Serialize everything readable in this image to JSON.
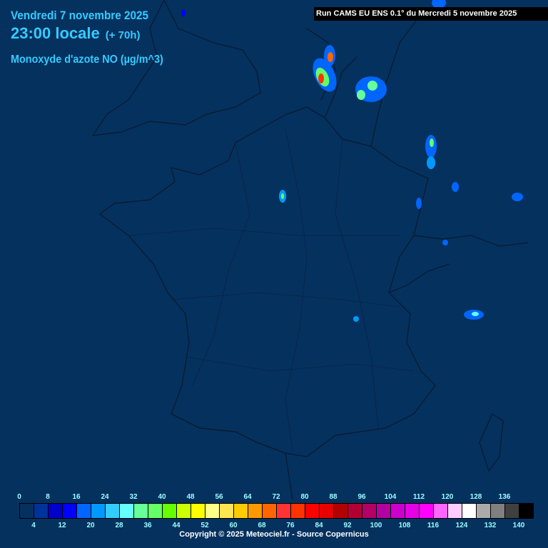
{
  "header": {
    "date": "Vendredi 7 novembre 2025",
    "time": "23:00 locale",
    "lead": "(+ 70h)",
    "parameter": "Monoxyde d'azote NO (µg/m^3)",
    "run": "Run CAMS EU ENS 0.1° du Mercredi 5 novembre 2025"
  },
  "legend": {
    "top_labels": [
      "0",
      "8",
      "16",
      "24",
      "32",
      "40",
      "48",
      "56",
      "64",
      "72",
      "80",
      "88",
      "96",
      "104",
      "112",
      "120",
      "128",
      "136"
    ],
    "bottom_labels": [
      "4",
      "12",
      "20",
      "28",
      "36",
      "44",
      "52",
      "60",
      "68",
      "76",
      "84",
      "92",
      "100",
      "108",
      "116",
      "124",
      "132",
      "140"
    ],
    "colors": [
      "#05315f",
      "#003399",
      "#0000cc",
      "#0000ff",
      "#0066ff",
      "#0099ff",
      "#33ccff",
      "#66ffff",
      "#66ff99",
      "#66ff66",
      "#66ff00",
      "#ccff00",
      "#ffff00",
      "#ffff88",
      "#ffe650",
      "#ffcc00",
      "#ff9900",
      "#ff6600",
      "#ff3333",
      "#ff3300",
      "#ff0000",
      "#e60000",
      "#b30000",
      "#b30033",
      "#b30066",
      "#b300a0",
      "#cc00cc",
      "#e600e6",
      "#ff00ff",
      "#ff66ff",
      "#ffccff",
      "#ffffff",
      "#aaaaaa",
      "#808080",
      "#404040",
      "#000000"
    ]
  },
  "footer": {
    "copyright": "Copyright © 2025 Meteociel.fr - Source Copernicus"
  },
  "colors": {
    "background": "#05315f",
    "title": "#33ccff",
    "borders": "#000000"
  }
}
